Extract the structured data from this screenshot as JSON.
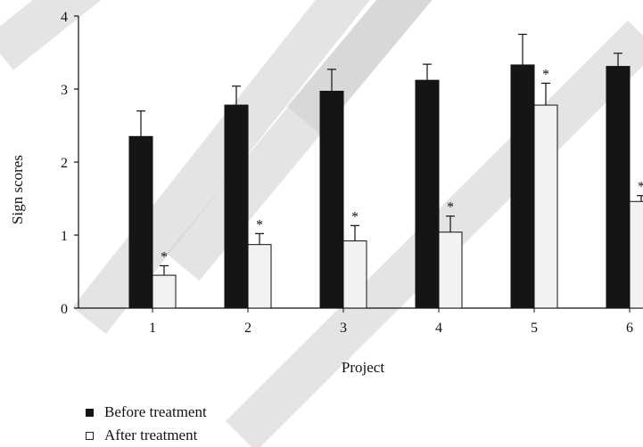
{
  "chart_data": {
    "type": "bar",
    "categories": [
      "1",
      "2",
      "3",
      "4",
      "5",
      "6"
    ],
    "series": [
      {
        "name": "Before treatment",
        "values": [
          2.35,
          2.78,
          2.97,
          3.12,
          3.33,
          3.31
        ],
        "errors": [
          0.35,
          0.26,
          0.3,
          0.22,
          0.42,
          0.18
        ],
        "color": "#151515",
        "significance": [
          "",
          "",
          "",
          "",
          "",
          ""
        ]
      },
      {
        "name": "After treatment",
        "values": [
          0.45,
          0.87,
          0.92,
          1.04,
          2.78,
          1.46
        ],
        "errors": [
          0.13,
          0.15,
          0.21,
          0.22,
          0.3,
          0.08
        ],
        "color": "#f2f2f2",
        "significance": [
          "*",
          "*",
          "*",
          "*",
          "*",
          "*"
        ]
      }
    ],
    "xlabel": "Project",
    "ylabel": "Sign scores",
    "ylim": [
      0,
      4
    ],
    "yticks": [
      "0",
      "1",
      "2",
      "3",
      "4"
    ],
    "legend_position": "bottom-left",
    "grid": false
  },
  "watermark": {
    "color": "#cfcfcf"
  }
}
